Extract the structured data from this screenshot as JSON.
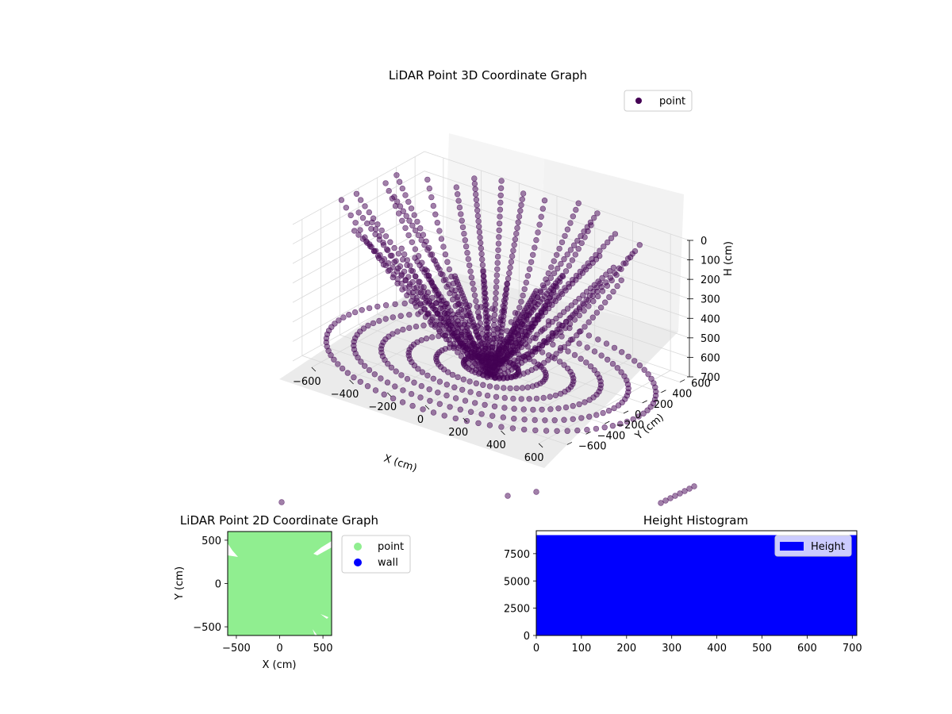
{
  "colors": {
    "point3d": "#440154",
    "point2d": "#90ee90",
    "wall": "#0000ff",
    "histogram": "#0000ff",
    "pane_floor": "#ebebeb",
    "pane_side": "#f2f2f2",
    "pane_back": "#f5f5f5"
  },
  "chart_data": [
    {
      "type": "scatter",
      "projection": "3d",
      "title": "LiDAR Point 3D Coordinate Graph",
      "xlabel": "X (cm)",
      "ylabel": "Y (cm)",
      "zlabel": "H (cm)",
      "xlim": [
        -700,
        700
      ],
      "ylim": [
        -700,
        700
      ],
      "zlim": [
        0,
        700
      ],
      "z_inverted": true,
      "xticks": [
        "−600",
        "−400",
        "−200",
        "0",
        "200",
        "400",
        "600"
      ],
      "yticks": [
        "−600",
        "−400",
        "−200",
        "0",
        "200",
        "400",
        "600"
      ],
      "zticks": [
        "0",
        "100",
        "200",
        "300",
        "400",
        "500",
        "600",
        "700"
      ],
      "grid": true,
      "legend": {
        "position": "top-right",
        "entries": [
          "point"
        ]
      },
      "series": [
        {
          "name": "point",
          "color": "#440154",
          "alpha": 0.5,
          "description": "points along curved scan lines radiating from the sensor near the floor centre"
        }
      ]
    },
    {
      "type": "scatter",
      "title": "LiDAR Point 2D Coordinate Graph",
      "xlabel": "X (cm)",
      "ylabel": "Y (cm)",
      "xlim": [
        -600,
        600
      ],
      "ylim": [
        -600,
        600
      ],
      "xticks": [
        "−500",
        "0",
        "500"
      ],
      "yticks": [
        "−500",
        "0",
        "500"
      ],
      "grid": false,
      "legend": {
        "position": "right",
        "entries": [
          "point",
          "wall"
        ]
      },
      "series": [
        {
          "name": "point",
          "color": "#90ee90",
          "coverage": "fills nearly the entire plot area"
        },
        {
          "name": "wall",
          "color": "#0000ff",
          "points": []
        }
      ]
    },
    {
      "type": "bar",
      "subtype": "histogram",
      "title": "Height Histogram",
      "xlim": [
        0,
        710
      ],
      "ylim": [
        0,
        9600
      ],
      "xticks": [
        "0",
        "100",
        "200",
        "300",
        "400",
        "500",
        "600",
        "700"
      ],
      "yticks": [
        "0",
        "2500",
        "5000",
        "7500"
      ],
      "legend": {
        "position": "top-right",
        "entries": [
          "Height"
        ]
      },
      "series": [
        {
          "name": "Height",
          "color": "#0000ff",
          "bin_range": [
            0,
            710
          ],
          "count": 9200
        }
      ]
    }
  ]
}
